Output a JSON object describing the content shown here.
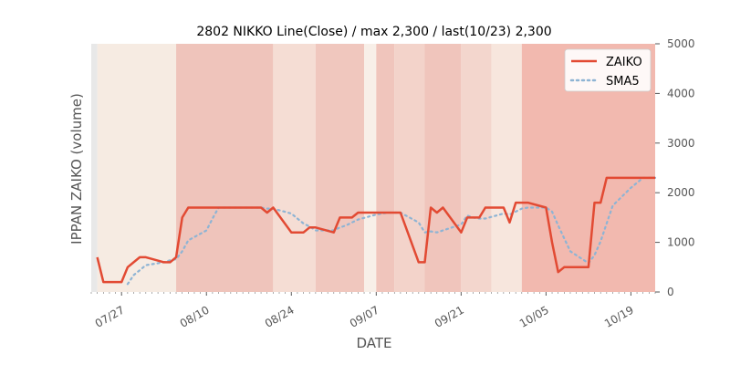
{
  "chart_data": {
    "type": "line",
    "title": "2802 NIKKO Line(Close) / max 2,300 / last(10/23) 2,300",
    "xlabel": "DATE",
    "ylabel": "IPPAN ZAIKO (volume)",
    "x_range": [
      "2020-07-22",
      "2020-10-23"
    ],
    "ylim": [
      0,
      5000
    ],
    "y_ticks": [
      0,
      1000,
      2000,
      3000,
      4000,
      5000
    ],
    "y_axis_position": "right",
    "x_ticks": [
      {
        "date": "2020-07-27",
        "label": "07/27"
      },
      {
        "date": "2020-08-10",
        "label": "08/10"
      },
      {
        "date": "2020-08-24",
        "label": "08/24"
      },
      {
        "date": "2020-09-07",
        "label": "09/07"
      },
      {
        "date": "2020-09-21",
        "label": "09/21"
      },
      {
        "date": "2020-10-05",
        "label": "10/05"
      },
      {
        "date": "2020-10-19",
        "label": "10/19"
      }
    ],
    "legend_position": "top-right",
    "grid": false,
    "series": [
      {
        "name": "ZAIKO",
        "style": "solid",
        "color": "#e24a33",
        "points": [
          [
            "2020-07-23",
            700
          ],
          [
            "2020-07-24",
            200
          ],
          [
            "2020-07-27",
            200
          ],
          [
            "2020-07-28",
            500
          ],
          [
            "2020-07-29",
            600
          ],
          [
            "2020-07-30",
            700
          ],
          [
            "2020-07-31",
            700
          ],
          [
            "2020-08-03",
            600
          ],
          [
            "2020-08-04",
            600
          ],
          [
            "2020-08-05",
            700
          ],
          [
            "2020-08-06",
            1500
          ],
          [
            "2020-08-07",
            1700
          ],
          [
            "2020-08-10",
            1700
          ],
          [
            "2020-08-11",
            1700
          ],
          [
            "2020-08-12",
            1700
          ],
          [
            "2020-08-13",
            1700
          ],
          [
            "2020-08-14",
            1700
          ],
          [
            "2020-08-17",
            1700
          ],
          [
            "2020-08-18",
            1700
          ],
          [
            "2020-08-19",
            1700
          ],
          [
            "2020-08-20",
            1600
          ],
          [
            "2020-08-21",
            1700
          ],
          [
            "2020-08-24",
            1200
          ],
          [
            "2020-08-25",
            1200
          ],
          [
            "2020-08-26",
            1200
          ],
          [
            "2020-08-27",
            1300
          ],
          [
            "2020-08-28",
            1300
          ],
          [
            "2020-08-31",
            1200
          ],
          [
            "2020-09-01",
            1500
          ],
          [
            "2020-09-02",
            1500
          ],
          [
            "2020-09-03",
            1500
          ],
          [
            "2020-09-04",
            1600
          ],
          [
            "2020-09-07",
            1600
          ],
          [
            "2020-09-08",
            1600
          ],
          [
            "2020-09-09",
            1600
          ],
          [
            "2020-09-10",
            1600
          ],
          [
            "2020-09-11",
            1600
          ],
          [
            "2020-09-14",
            600
          ],
          [
            "2020-09-15",
            600
          ],
          [
            "2020-09-16",
            1700
          ],
          [
            "2020-09-17",
            1600
          ],
          [
            "2020-09-18",
            1700
          ],
          [
            "2020-09-21",
            1200
          ],
          [
            "2020-09-22",
            1500
          ],
          [
            "2020-09-23",
            1500
          ],
          [
            "2020-09-24",
            1500
          ],
          [
            "2020-09-25",
            1700
          ],
          [
            "2020-09-28",
            1700
          ],
          [
            "2020-09-29",
            1400
          ],
          [
            "2020-09-30",
            1800
          ],
          [
            "2020-10-01",
            1800
          ],
          [
            "2020-10-02",
            1800
          ],
          [
            "2020-10-05",
            1700
          ],
          [
            "2020-10-06",
            1000
          ],
          [
            "2020-10-07",
            400
          ],
          [
            "2020-10-08",
            500
          ],
          [
            "2020-10-09",
            500
          ],
          [
            "2020-10-12",
            500
          ],
          [
            "2020-10-13",
            1800
          ],
          [
            "2020-10-14",
            1800
          ],
          [
            "2020-10-15",
            2300
          ],
          [
            "2020-10-16",
            2300
          ],
          [
            "2020-10-19",
            2300
          ],
          [
            "2020-10-20",
            2300
          ],
          [
            "2020-10-21",
            2300
          ],
          [
            "2020-10-22",
            2300
          ],
          [
            "2020-10-23",
            2300
          ]
        ]
      },
      {
        "name": "SMA5",
        "style": "dotted",
        "color": "#8eb4d4",
        "points": [
          [
            "2020-07-28",
            160
          ],
          [
            "2020-07-29",
            340
          ],
          [
            "2020-07-30",
            440
          ],
          [
            "2020-07-31",
            540
          ],
          [
            "2020-08-03",
            600
          ],
          [
            "2020-08-04",
            640
          ],
          [
            "2020-08-05",
            660
          ],
          [
            "2020-08-06",
            820
          ],
          [
            "2020-08-07",
            1040
          ],
          [
            "2020-08-10",
            1240
          ],
          [
            "2020-08-11",
            1480
          ],
          [
            "2020-08-12",
            1700
          ],
          [
            "2020-08-13",
            1700
          ],
          [
            "2020-08-14",
            1700
          ],
          [
            "2020-08-17",
            1700
          ],
          [
            "2020-08-18",
            1700
          ],
          [
            "2020-08-19",
            1700
          ],
          [
            "2020-08-20",
            1680
          ],
          [
            "2020-08-21",
            1680
          ],
          [
            "2020-08-24",
            1580
          ],
          [
            "2020-08-25",
            1480
          ],
          [
            "2020-08-26",
            1380
          ],
          [
            "2020-08-27",
            1320
          ],
          [
            "2020-08-28",
            1240
          ],
          [
            "2020-08-31",
            1240
          ],
          [
            "2020-09-01",
            1300
          ],
          [
            "2020-09-02",
            1340
          ],
          [
            "2020-09-03",
            1400
          ],
          [
            "2020-09-04",
            1460
          ],
          [
            "2020-09-07",
            1560
          ],
          [
            "2020-09-08",
            1580
          ],
          [
            "2020-09-09",
            1600
          ],
          [
            "2020-09-10",
            1600
          ],
          [
            "2020-09-11",
            1600
          ],
          [
            "2020-09-14",
            1400
          ],
          [
            "2020-09-15",
            1200
          ],
          [
            "2020-09-16",
            1220
          ],
          [
            "2020-09-17",
            1200
          ],
          [
            "2020-09-18",
            1240
          ],
          [
            "2020-09-21",
            1360
          ],
          [
            "2020-09-22",
            1540
          ],
          [
            "2020-09-23",
            1500
          ],
          [
            "2020-09-24",
            1480
          ],
          [
            "2020-09-25",
            1480
          ],
          [
            "2020-09-28",
            1580
          ],
          [
            "2020-09-29",
            1560
          ],
          [
            "2020-09-30",
            1620
          ],
          [
            "2020-10-01",
            1680
          ],
          [
            "2020-10-02",
            1700
          ],
          [
            "2020-10-05",
            1700
          ],
          [
            "2020-10-06",
            1620
          ],
          [
            "2020-10-07",
            1340
          ],
          [
            "2020-10-08",
            1080
          ],
          [
            "2020-10-09",
            820
          ],
          [
            "2020-10-12",
            580
          ],
          [
            "2020-10-13",
            740
          ],
          [
            "2020-10-14",
            1020
          ],
          [
            "2020-10-15",
            1380
          ],
          [
            "2020-10-16",
            1740
          ],
          [
            "2020-10-19",
            2100
          ],
          [
            "2020-10-20",
            2200
          ],
          [
            "2020-10-21",
            2300
          ],
          [
            "2020-10-22",
            2300
          ],
          [
            "2020-10-23",
            2300
          ]
        ]
      }
    ],
    "background_bands": [
      {
        "from": "2020-07-22",
        "to": "2020-07-23",
        "color": "#e8e8e8"
      },
      {
        "from": "2020-07-23",
        "to": "2020-08-05",
        "color": "#f6ebe2"
      },
      {
        "from": "2020-08-05",
        "to": "2020-08-21",
        "color": "#efc4bb"
      },
      {
        "from": "2020-08-21",
        "to": "2020-08-28",
        "color": "#f5ddd4"
      },
      {
        "from": "2020-08-28",
        "to": "2020-09-05",
        "color": "#f0c7be"
      },
      {
        "from": "2020-09-05",
        "to": "2020-09-07",
        "color": "#f8efe8"
      },
      {
        "from": "2020-09-07",
        "to": "2020-09-10",
        "color": "#f0c5bc"
      },
      {
        "from": "2020-09-10",
        "to": "2020-09-15",
        "color": "#f3d3ca"
      },
      {
        "from": "2020-09-15",
        "to": "2020-09-21",
        "color": "#f0c5bc"
      },
      {
        "from": "2020-09-21",
        "to": "2020-09-26",
        "color": "#f3d6cd"
      },
      {
        "from": "2020-09-26",
        "to": "2020-10-01",
        "color": "#f7e6dd"
      },
      {
        "from": "2020-10-01",
        "to": "2020-10-23",
        "color": "#f2b9af"
      }
    ]
  }
}
